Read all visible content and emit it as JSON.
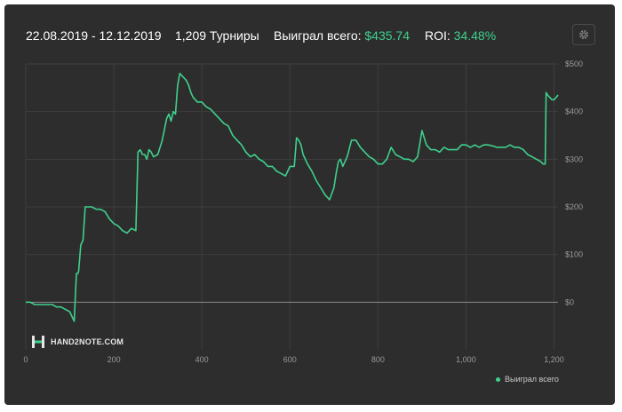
{
  "header": {
    "date_range": "22.08.2019 - 12.12.2019",
    "tournaments": "1,209 Турниры",
    "won_label": "Выиграл всего:",
    "won_value": "$435.74",
    "roi_label": "ROI:",
    "roi_value": "34.48%"
  },
  "icons": {
    "settings": "gear-icon",
    "logo": "hand2note-logo"
  },
  "logo_text": "HAND2NOTE.COM",
  "colors": {
    "line": "#3fd08d",
    "accent": "#3fd08d",
    "background": "#2d2d2d",
    "grid": "#3e3e3e",
    "zero_line": "#8a8a8a"
  },
  "chart_data": {
    "type": "line",
    "title": "",
    "xlabel": "",
    "ylabel": "",
    "xlim": [
      0,
      1209
    ],
    "ylim": [
      -100,
      500
    ],
    "grid": true,
    "y_axis_position": "right",
    "legend": "bottom-right",
    "x_ticks": [
      0,
      200,
      400,
      600,
      800,
      1000,
      1200
    ],
    "x_tick_labels": [
      "0",
      "200",
      "400",
      "600",
      "800",
      "1,000",
      "1,200"
    ],
    "y_ticks": [
      500,
      400,
      300,
      200,
      100,
      0
    ],
    "y_tick_labels": [
      "$500",
      "$400",
      "$300",
      "$200",
      "$100",
      "$0"
    ],
    "series": [
      {
        "name": "Выиграл всего",
        "x": [
          0,
          10,
          20,
          30,
          40,
          50,
          60,
          70,
          80,
          90,
          100,
          110,
          112,
          115,
          118,
          120,
          125,
          130,
          135,
          140,
          145,
          150,
          160,
          170,
          180,
          190,
          200,
          210,
          220,
          230,
          240,
          250,
          255,
          260,
          265,
          270,
          275,
          280,
          285,
          290,
          300,
          310,
          320,
          325,
          330,
          335,
          340,
          345,
          350,
          355,
          360,
          365,
          370,
          375,
          380,
          390,
          400,
          410,
          420,
          430,
          440,
          450,
          460,
          470,
          480,
          490,
          500,
          510,
          520,
          530,
          540,
          550,
          560,
          570,
          580,
          590,
          600,
          610,
          615,
          620,
          625,
          630,
          640,
          650,
          660,
          670,
          680,
          690,
          700,
          705,
          710,
          715,
          720,
          730,
          740,
          750,
          760,
          770,
          780,
          790,
          800,
          810,
          820,
          830,
          840,
          850,
          860,
          870,
          880,
          890,
          900,
          910,
          920,
          930,
          940,
          950,
          960,
          970,
          980,
          990,
          1000,
          1010,
          1020,
          1030,
          1040,
          1050,
          1060,
          1070,
          1080,
          1090,
          1100,
          1110,
          1120,
          1130,
          1140,
          1150,
          1160,
          1170,
          1175,
          1180,
          1182,
          1185,
          1190,
          1195,
          1200,
          1205,
          1209
        ],
        "values": [
          0,
          0,
          -5,
          -5,
          -5,
          -5,
          -5,
          -10,
          -10,
          -15,
          -20,
          -40,
          0,
          60,
          60,
          65,
          120,
          130,
          200,
          200,
          200,
          200,
          195,
          195,
          190,
          175,
          165,
          160,
          150,
          145,
          155,
          150,
          315,
          320,
          310,
          310,
          300,
          320,
          315,
          305,
          310,
          340,
          385,
          395,
          380,
          400,
          395,
          455,
          480,
          475,
          470,
          465,
          455,
          440,
          430,
          420,
          420,
          410,
          405,
          395,
          385,
          375,
          370,
          350,
          340,
          330,
          315,
          305,
          310,
          300,
          295,
          285,
          285,
          275,
          270,
          265,
          285,
          285,
          345,
          340,
          330,
          310,
          290,
          275,
          255,
          240,
          225,
          215,
          240,
          270,
          295,
          300,
          285,
          305,
          340,
          340,
          325,
          315,
          305,
          300,
          290,
          290,
          300,
          325,
          310,
          305,
          300,
          300,
          295,
          305,
          360,
          330,
          320,
          320,
          315,
          325,
          320,
          320,
          320,
          330,
          330,
          325,
          330,
          325,
          330,
          330,
          328,
          325,
          325,
          325,
          330,
          325,
          325,
          320,
          310,
          305,
          300,
          295,
          290,
          290,
          440,
          435,
          430,
          425,
          425,
          430,
          435
        ]
      }
    ]
  }
}
